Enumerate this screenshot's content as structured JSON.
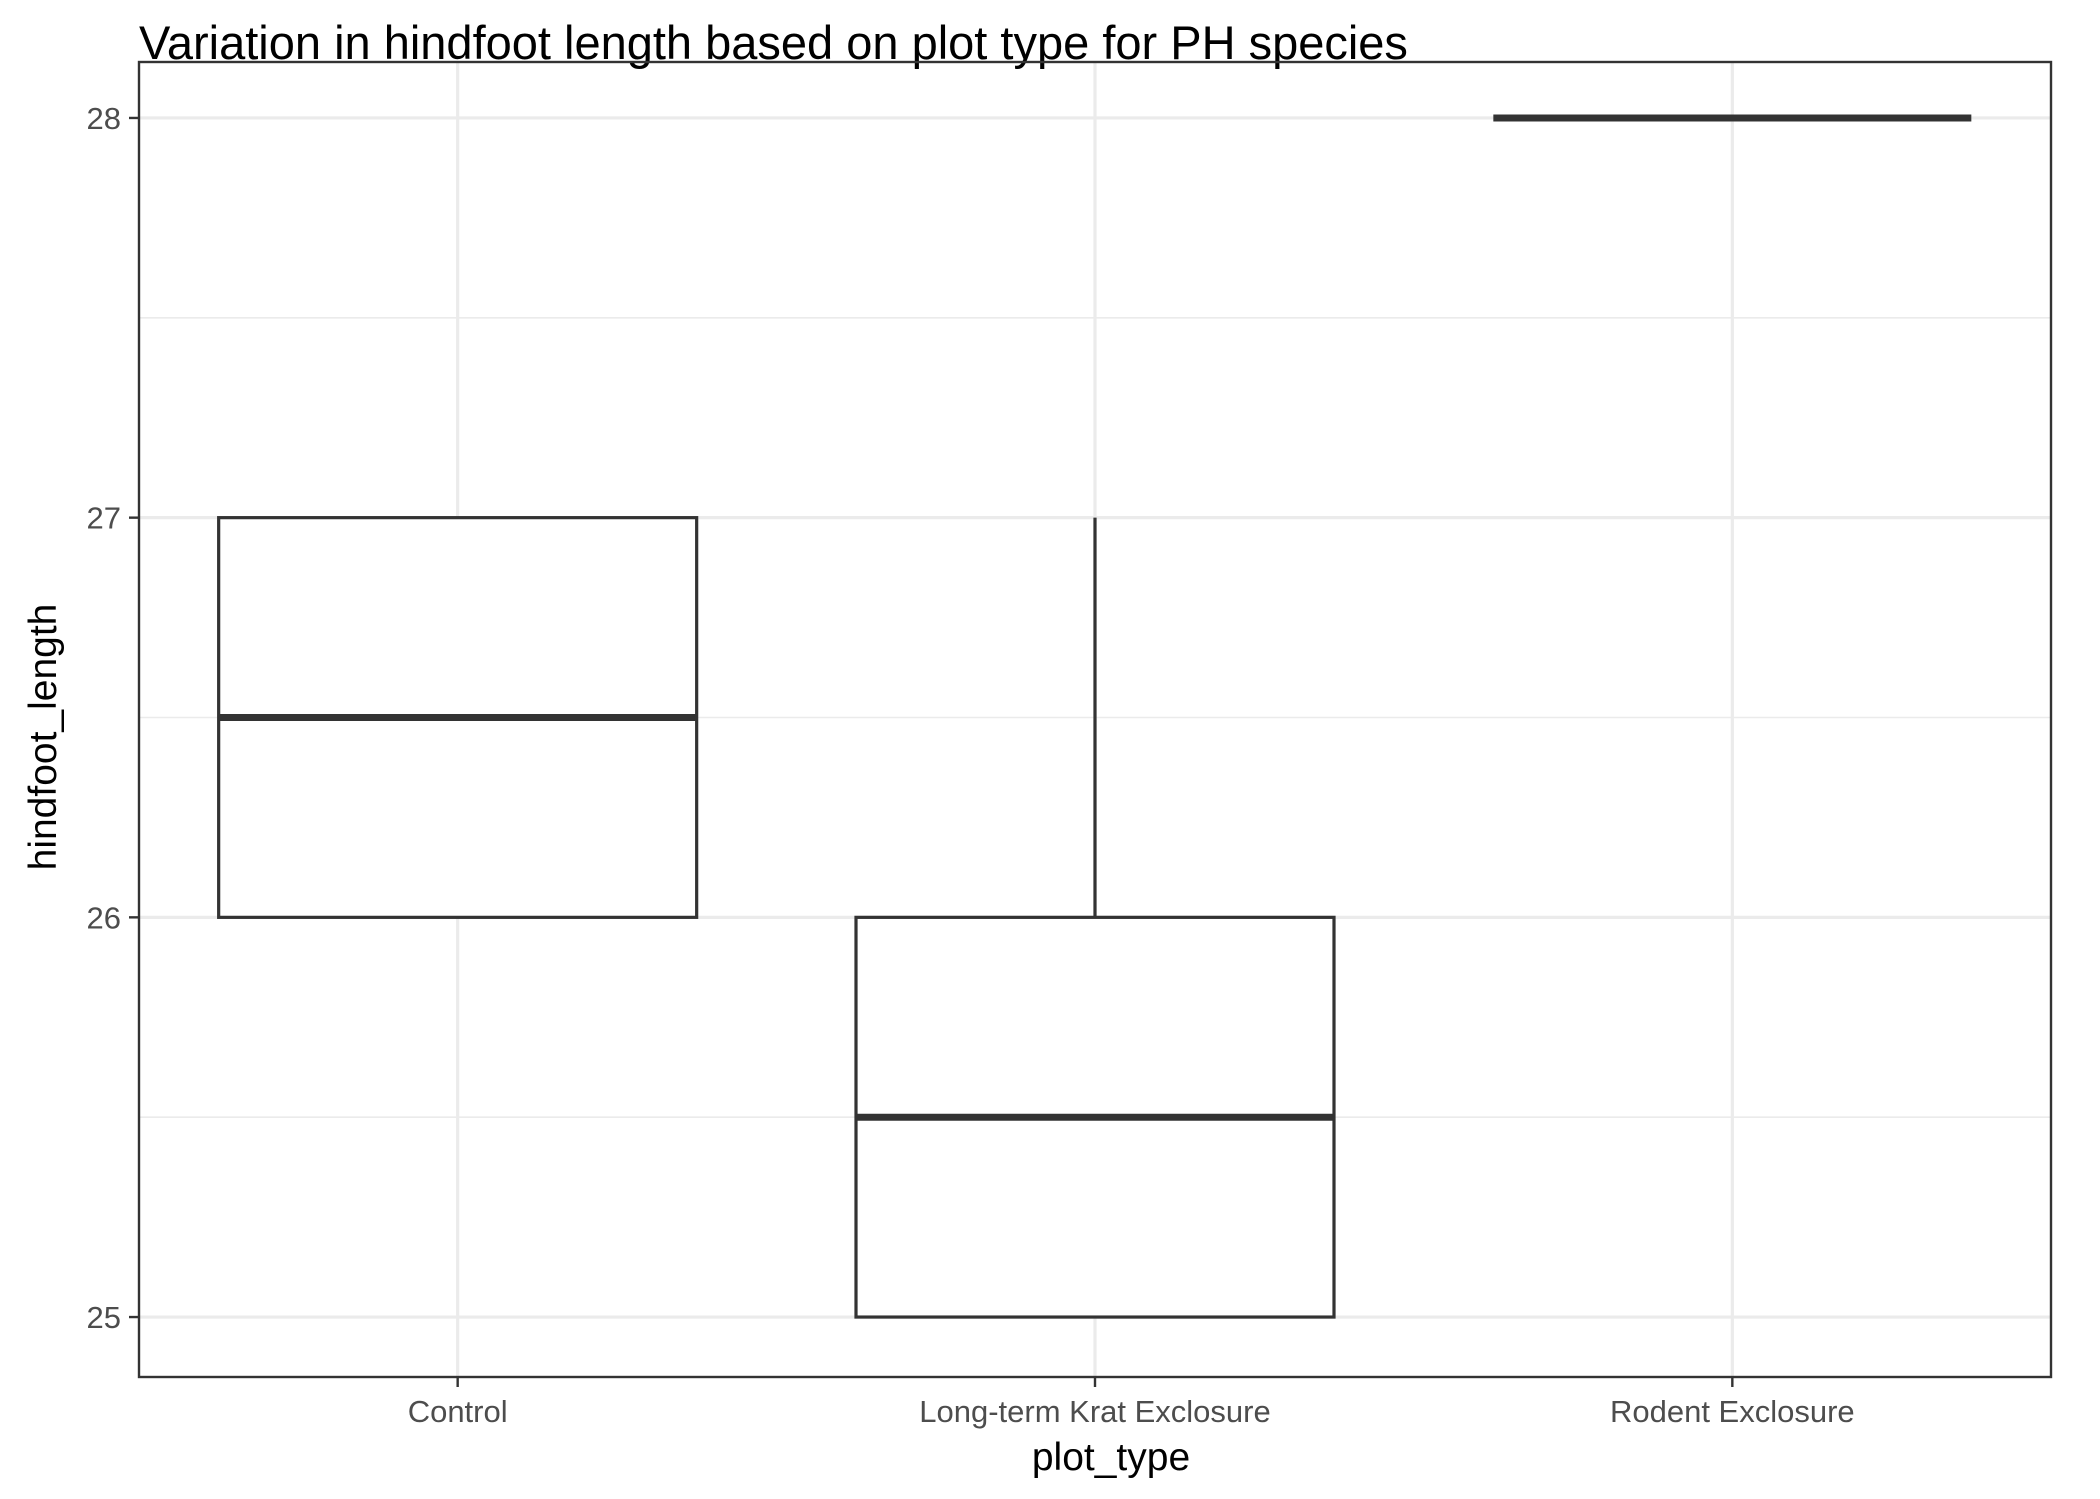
{
  "chart_data": {
    "type": "boxplot",
    "title": "Variation in hindfoot length based on plot type for PH species",
    "xlabel": "plot_type",
    "ylabel": "hindfoot_length",
    "categories": [
      "Control",
      "Long-term Krat Exclosure",
      "Rodent Exclosure"
    ],
    "yticks": [
      25,
      26,
      27,
      28
    ],
    "ylim": [
      24.85,
      28.14
    ],
    "grid": true,
    "boxes": [
      {
        "category": "Control",
        "min": 26,
        "q1": 26,
        "median": 26.5,
        "q3": 27,
        "max": 27
      },
      {
        "category": "Long-term Krat Exclosure",
        "min": 25,
        "q1": 25,
        "median": 25.5,
        "q3": 26,
        "max": 27
      },
      {
        "category": "Rodent Exclosure",
        "min": 28,
        "q1": 28,
        "median": 28,
        "q3": 28,
        "max": 28
      }
    ]
  }
}
